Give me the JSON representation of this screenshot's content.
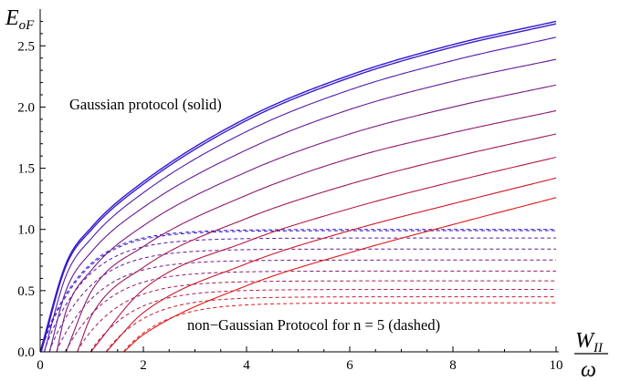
{
  "chart_data": {
    "type": "line",
    "title": "",
    "ylabel": {
      "main": "E",
      "sub": "oF"
    },
    "xlabel": {
      "numerator_main": "W",
      "numerator_sub": "II",
      "denominator": "ω"
    },
    "xlim": [
      0,
      10
    ],
    "ylim": [
      0,
      2.8
    ],
    "xticks": [
      "0",
      "2",
      "4",
      "6",
      "8",
      "10"
    ],
    "yticks": [
      "0.0",
      "0.5",
      "1.0",
      "1.5",
      "2.0",
      "2.5"
    ],
    "grid": false,
    "annotations": {
      "solid_label": "Gaussian protocol (solid)",
      "dashed_label": "non−Gaussian Protocol for n = 5 (dashed)"
    },
    "colors": {
      "blue_end": "#2a1ad6",
      "red_end": "#e01818"
    },
    "series_solid": [
      {
        "style": "solid",
        "x_start": 0.0,
        "x": [
          0,
          0.5,
          1,
          2,
          4,
          6,
          8,
          10
        ],
        "y": [
          0,
          0.72,
          1.02,
          1.39,
          1.91,
          2.26,
          2.51,
          2.7
        ]
      },
      {
        "style": "solid",
        "x_start": 0.02,
        "x": [
          0.02,
          0.5,
          1,
          2,
          4,
          6,
          8,
          10
        ],
        "y": [
          0,
          0.7,
          1.0,
          1.37,
          1.89,
          2.24,
          2.49,
          2.68
        ]
      },
      {
        "style": "solid",
        "x_start": 0.08,
        "x": [
          0.08,
          0.5,
          1,
          2,
          4,
          6,
          8,
          10
        ],
        "y": [
          0,
          0.62,
          0.93,
          1.3,
          1.8,
          2.14,
          2.38,
          2.57
        ]
      },
      {
        "style": "solid",
        "x_start": 0.18,
        "x": [
          0.18,
          0.5,
          1,
          2,
          4,
          6,
          8,
          10
        ],
        "y": [
          0,
          0.5,
          0.82,
          1.18,
          1.65,
          1.98,
          2.21,
          2.39
        ]
      },
      {
        "style": "solid",
        "x_start": 0.32,
        "x": [
          0.32,
          0.5,
          1,
          2,
          4,
          6,
          8,
          10
        ],
        "y": [
          0,
          0.33,
          0.67,
          1.03,
          1.47,
          1.78,
          2.0,
          2.18
        ]
      },
      {
        "style": "solid",
        "x_start": 0.5,
        "x": [
          0.5,
          1,
          2,
          4,
          6,
          8,
          10
        ],
        "y": [
          0,
          0.5,
          0.86,
          1.28,
          1.58,
          1.79,
          1.97
        ]
      },
      {
        "style": "solid",
        "x_start": 0.72,
        "x": [
          0.72,
          1,
          2,
          4,
          6,
          8,
          10
        ],
        "y": [
          0,
          0.3,
          0.69,
          1.09,
          1.37,
          1.59,
          1.78
        ]
      },
      {
        "style": "solid",
        "x_start": 0.98,
        "x": [
          0.98,
          2,
          4,
          6,
          8,
          10
        ],
        "y": [
          0,
          0.51,
          0.9,
          1.17,
          1.39,
          1.59
        ]
      },
      {
        "style": "solid",
        "x_start": 1.28,
        "x": [
          1.28,
          2,
          4,
          6,
          8,
          10
        ],
        "y": [
          0,
          0.32,
          0.72,
          0.99,
          1.21,
          1.42
        ]
      },
      {
        "style": "solid",
        "x_start": 1.62,
        "x": [
          1.62,
          2,
          4,
          6,
          8,
          10
        ],
        "y": [
          0,
          0.14,
          0.54,
          0.81,
          1.04,
          1.26
        ]
      }
    ],
    "series_dashed": [
      {
        "style": "dashed",
        "x_start": 0.0,
        "plateau": 1.0
      },
      {
        "style": "dashed",
        "x_start": 0.02,
        "plateau": 0.99
      },
      {
        "style": "dashed",
        "x_start": 0.08,
        "plateau": 0.93
      },
      {
        "style": "dashed",
        "x_start": 0.18,
        "plateau": 0.84
      },
      {
        "style": "dashed",
        "x_start": 0.32,
        "plateau": 0.75
      },
      {
        "style": "dashed",
        "x_start": 0.5,
        "plateau": 0.66
      },
      {
        "style": "dashed",
        "x_start": 0.72,
        "plateau": 0.58
      },
      {
        "style": "dashed",
        "x_start": 0.98,
        "plateau": 0.51
      },
      {
        "style": "dashed",
        "x_start": 1.28,
        "plateau": 0.45
      },
      {
        "style": "dashed",
        "x_start": 1.62,
        "plateau": 0.4
      }
    ]
  }
}
